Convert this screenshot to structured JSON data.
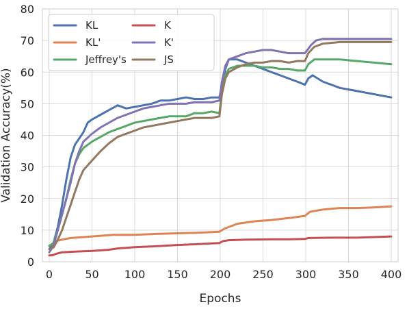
{
  "chart_data": {
    "type": "line",
    "title": "",
    "xlabel": "Epochs",
    "ylabel": "Validation Accuracy(%)",
    "xlim": [
      -8,
      408
    ],
    "ylim": [
      0,
      80
    ],
    "xticks": [
      0,
      50,
      100,
      150,
      200,
      250,
      300,
      350,
      400
    ],
    "yticks": [
      0,
      10,
      20,
      30,
      40,
      50,
      60,
      70,
      80
    ],
    "grid": true,
    "legend_position": "top-left",
    "legend_columns": 2,
    "series": [
      {
        "name": "KL",
        "color": "#4c72b0",
        "points": [
          [
            0,
            4
          ],
          [
            5,
            6
          ],
          [
            10,
            11
          ],
          [
            15,
            18
          ],
          [
            20,
            26
          ],
          [
            25,
            33
          ],
          [
            30,
            37
          ],
          [
            35,
            39
          ],
          [
            40,
            41
          ],
          [
            45,
            44
          ],
          [
            50,
            45
          ],
          [
            60,
            46.5
          ],
          [
            70,
            48
          ],
          [
            80,
            49.5
          ],
          [
            90,
            48.5
          ],
          [
            100,
            49
          ],
          [
            110,
            49.5
          ],
          [
            120,
            50
          ],
          [
            130,
            51
          ],
          [
            140,
            51
          ],
          [
            150,
            51.5
          ],
          [
            160,
            52
          ],
          [
            170,
            51.5
          ],
          [
            180,
            51.5
          ],
          [
            190,
            52
          ],
          [
            199,
            52
          ],
          [
            202,
            56
          ],
          [
            206,
            61
          ],
          [
            210,
            64
          ],
          [
            220,
            64
          ],
          [
            230,
            63
          ],
          [
            240,
            62
          ],
          [
            250,
            61
          ],
          [
            260,
            60
          ],
          [
            270,
            59
          ],
          [
            280,
            58
          ],
          [
            290,
            57
          ],
          [
            299,
            56
          ],
          [
            303,
            58
          ],
          [
            308,
            59
          ],
          [
            320,
            57
          ],
          [
            340,
            55
          ],
          [
            360,
            54
          ],
          [
            380,
            53
          ],
          [
            400,
            52
          ]
        ]
      },
      {
        "name": "KL'",
        "color": "#dd8452",
        "points": [
          [
            0,
            5
          ],
          [
            3,
            5.5
          ],
          [
            8,
            6.5
          ],
          [
            15,
            7
          ],
          [
            25,
            7.5
          ],
          [
            50,
            8
          ],
          [
            75,
            8.5
          ],
          [
            100,
            8.5
          ],
          [
            125,
            8.8
          ],
          [
            150,
            9
          ],
          [
            175,
            9.2
          ],
          [
            199,
            9.5
          ],
          [
            205,
            10.5
          ],
          [
            220,
            12
          ],
          [
            240,
            12.8
          ],
          [
            260,
            13.2
          ],
          [
            280,
            13.8
          ],
          [
            299,
            14.5
          ],
          [
            305,
            15.8
          ],
          [
            320,
            16.5
          ],
          [
            340,
            17
          ],
          [
            360,
            17
          ],
          [
            380,
            17.2
          ],
          [
            400,
            17.5
          ]
        ]
      },
      {
        "name": "Jeffrey's",
        "color": "#55a868",
        "points": [
          [
            0,
            5
          ],
          [
            5,
            6
          ],
          [
            10,
            10
          ],
          [
            15,
            15
          ],
          [
            20,
            20
          ],
          [
            25,
            26
          ],
          [
            30,
            31
          ],
          [
            35,
            34
          ],
          [
            40,
            36
          ],
          [
            50,
            38
          ],
          [
            60,
            39.5
          ],
          [
            70,
            41
          ],
          [
            80,
            42
          ],
          [
            90,
            43
          ],
          [
            100,
            44
          ],
          [
            110,
            44.5
          ],
          [
            120,
            45
          ],
          [
            130,
            45.5
          ],
          [
            140,
            46
          ],
          [
            150,
            46
          ],
          [
            160,
            46
          ],
          [
            170,
            47
          ],
          [
            180,
            47
          ],
          [
            190,
            47.5
          ],
          [
            199,
            47
          ],
          [
            202,
            54
          ],
          [
            206,
            59
          ],
          [
            210,
            61
          ],
          [
            220,
            62
          ],
          [
            230,
            62
          ],
          [
            240,
            62
          ],
          [
            250,
            61.5
          ],
          [
            260,
            61.5
          ],
          [
            270,
            61
          ],
          [
            280,
            61
          ],
          [
            290,
            60.5
          ],
          [
            299,
            60.5
          ],
          [
            303,
            62.5
          ],
          [
            310,
            64
          ],
          [
            320,
            64
          ],
          [
            340,
            64
          ],
          [
            360,
            63.5
          ],
          [
            380,
            63
          ],
          [
            400,
            62.5
          ]
        ]
      },
      {
        "name": "K",
        "color": "#c44e52",
        "points": [
          [
            0,
            2
          ],
          [
            3,
            2
          ],
          [
            8,
            2.5
          ],
          [
            15,
            3
          ],
          [
            30,
            3.2
          ],
          [
            50,
            3.4
          ],
          [
            70,
            3.8
          ],
          [
            80,
            4.2
          ],
          [
            100,
            4.6
          ],
          [
            125,
            4.9
          ],
          [
            150,
            5.3
          ],
          [
            175,
            5.6
          ],
          [
            190,
            5.8
          ],
          [
            199,
            5.9
          ],
          [
            203,
            6.5
          ],
          [
            210,
            6.8
          ],
          [
            230,
            7
          ],
          [
            260,
            7.1
          ],
          [
            280,
            7.1
          ],
          [
            299,
            7.2
          ],
          [
            303,
            7.5
          ],
          [
            330,
            7.6
          ],
          [
            360,
            7.6
          ],
          [
            380,
            7.8
          ],
          [
            400,
            8
          ]
        ]
      },
      {
        "name": "K'",
        "color": "#8172b3",
        "points": [
          [
            0,
            3
          ],
          [
            5,
            5
          ],
          [
            10,
            10
          ],
          [
            15,
            15
          ],
          [
            20,
            20
          ],
          [
            25,
            25
          ],
          [
            30,
            31
          ],
          [
            35,
            35
          ],
          [
            40,
            38
          ],
          [
            50,
            40.5
          ],
          [
            60,
            42.5
          ],
          [
            70,
            44
          ],
          [
            80,
            45.5
          ],
          [
            90,
            46.5
          ],
          [
            100,
            47.5
          ],
          [
            110,
            48.5
          ],
          [
            120,
            49
          ],
          [
            130,
            49.5
          ],
          [
            140,
            50
          ],
          [
            150,
            50
          ],
          [
            160,
            50
          ],
          [
            170,
            50.5
          ],
          [
            180,
            50.5
          ],
          [
            190,
            50.5
          ],
          [
            199,
            51
          ],
          [
            202,
            57
          ],
          [
            206,
            62
          ],
          [
            210,
            64
          ],
          [
            220,
            65
          ],
          [
            230,
            66
          ],
          [
            240,
            66.5
          ],
          [
            250,
            67
          ],
          [
            260,
            67
          ],
          [
            270,
            66.5
          ],
          [
            280,
            66
          ],
          [
            290,
            66
          ],
          [
            299,
            66
          ],
          [
            302,
            67
          ],
          [
            306,
            68.5
          ],
          [
            312,
            70
          ],
          [
            320,
            70.5
          ],
          [
            340,
            70.5
          ],
          [
            360,
            70.5
          ],
          [
            380,
            70.5
          ],
          [
            400,
            70.5
          ]
        ]
      },
      {
        "name": "JS",
        "color": "#937860",
        "points": [
          [
            0,
            4
          ],
          [
            5,
            4.5
          ],
          [
            10,
            7
          ],
          [
            15,
            10
          ],
          [
            20,
            14
          ],
          [
            25,
            18
          ],
          [
            30,
            22
          ],
          [
            35,
            26
          ],
          [
            40,
            29
          ],
          [
            50,
            32
          ],
          [
            60,
            35
          ],
          [
            70,
            37.5
          ],
          [
            80,
            39.5
          ],
          [
            90,
            40.5
          ],
          [
            100,
            41.5
          ],
          [
            110,
            42.5
          ],
          [
            120,
            43
          ],
          [
            130,
            43.5
          ],
          [
            140,
            44
          ],
          [
            150,
            44.5
          ],
          [
            160,
            45
          ],
          [
            170,
            45.5
          ],
          [
            180,
            45.5
          ],
          [
            190,
            45.5
          ],
          [
            199,
            46
          ],
          [
            202,
            53
          ],
          [
            206,
            58
          ],
          [
            210,
            60
          ],
          [
            220,
            61.5
          ],
          [
            230,
            62.5
          ],
          [
            240,
            63
          ],
          [
            250,
            63
          ],
          [
            260,
            63.5
          ],
          [
            270,
            63.5
          ],
          [
            280,
            63
          ],
          [
            290,
            63.5
          ],
          [
            299,
            63.5
          ],
          [
            303,
            66
          ],
          [
            310,
            68
          ],
          [
            320,
            69
          ],
          [
            340,
            69.5
          ],
          [
            360,
            69.5
          ],
          [
            380,
            69.5
          ],
          [
            400,
            69.5
          ]
        ]
      }
    ]
  }
}
